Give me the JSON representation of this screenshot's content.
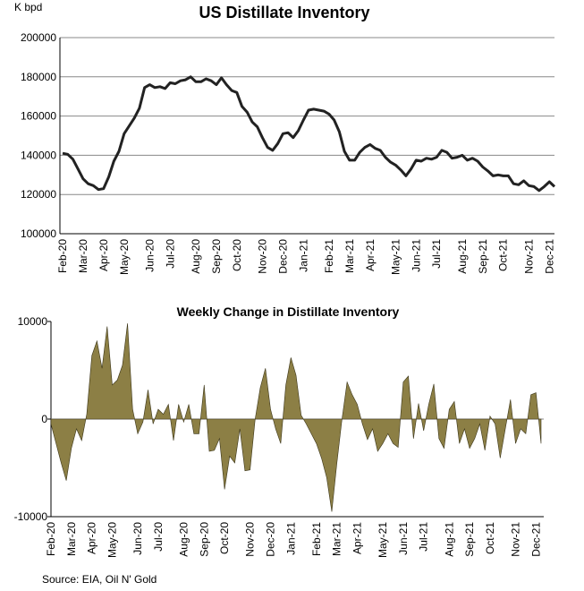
{
  "chart_data": [
    {
      "type": "line",
      "title": "US Distillate Inventory",
      "ylabel": "K bpd",
      "color": "#222222",
      "grid": true,
      "ylim": [
        100000,
        200000
      ],
      "yticks": [
        100000,
        120000,
        140000,
        160000,
        180000,
        200000
      ],
      "categories": [
        "Feb-20",
        null,
        null,
        null,
        "Mar-20",
        null,
        null,
        null,
        "Apr-20",
        null,
        null,
        null,
        "May-20",
        null,
        null,
        null,
        null,
        "Jun-20",
        null,
        null,
        null,
        "Jul-20",
        null,
        null,
        null,
        null,
        "Aug-20",
        null,
        null,
        null,
        "Sep-20",
        null,
        null,
        null,
        "Oct-20",
        null,
        null,
        null,
        null,
        "Nov-20",
        null,
        null,
        null,
        "Dec-20",
        null,
        null,
        null,
        "Jan-21",
        null,
        null,
        null,
        null,
        "Feb-21",
        null,
        null,
        null,
        "Mar-21",
        null,
        null,
        null,
        "Apr-21",
        null,
        null,
        null,
        null,
        "May-21",
        null,
        null,
        null,
        "Jun-21",
        null,
        null,
        null,
        "Jul-21",
        null,
        null,
        null,
        null,
        "Aug-21",
        null,
        null,
        null,
        "Sep-21",
        null,
        null,
        null,
        "Oct-21",
        null,
        null,
        null,
        null,
        "Nov-21",
        null,
        null,
        null,
        "Dec-21",
        null
      ],
      "values": [
        141000,
        140500,
        138000,
        133000,
        128000,
        125500,
        124500,
        122500,
        123000,
        129000,
        137000,
        142000,
        151000,
        155000,
        159000,
        164000,
        174500,
        176000,
        174500,
        175000,
        174000,
        177000,
        176500,
        178000,
        178500,
        180000,
        177500,
        177500,
        179000,
        178000,
        176000,
        179500,
        176000,
        173000,
        172000,
        165000,
        162000,
        157000,
        154500,
        149000,
        144000,
        142500,
        146000,
        151000,
        151500,
        149000,
        152500,
        158000,
        163000,
        163500,
        163000,
        162500,
        161000,
        158000,
        152000,
        142000,
        137500,
        137500,
        141500,
        144000,
        145500,
        143500,
        142500,
        139000,
        136500,
        135000,
        132500,
        129500,
        133000,
        137500,
        137000,
        138500,
        138000,
        139000,
        142500,
        141500,
        138500,
        139000,
        140000,
        137500,
        138500,
        137000,
        134000,
        132000,
        129500,
        130000,
        129500,
        129500,
        125500,
        125000,
        127000,
        124500,
        124000,
        122000,
        124000,
        126500,
        124000
      ]
    },
    {
      "type": "area",
      "title": "Weekly Change in Distillate Inventory",
      "color": "#8c7f45",
      "grid": false,
      "ylim": [
        -10000,
        10000
      ],
      "yticks": [
        -10000,
        0,
        10000
      ],
      "categories": [
        "Feb-20",
        null,
        null,
        null,
        "Mar-20",
        null,
        null,
        null,
        "Apr-20",
        null,
        null,
        null,
        "May-20",
        null,
        null,
        null,
        null,
        "Jun-20",
        null,
        null,
        null,
        "Jul-20",
        null,
        null,
        null,
        null,
        "Aug-20",
        null,
        null,
        null,
        "Sep-20",
        null,
        null,
        null,
        "Oct-20",
        null,
        null,
        null,
        null,
        "Nov-20",
        null,
        null,
        null,
        "Dec-20",
        null,
        null,
        null,
        "Jan-21",
        null,
        null,
        null,
        null,
        "Feb-21",
        null,
        null,
        null,
        "Mar-21",
        null,
        null,
        null,
        "Apr-21",
        null,
        null,
        null,
        null,
        "May-21",
        null,
        null,
        null,
        "Jun-21",
        null,
        null,
        null,
        "Jul-21",
        null,
        null,
        null,
        null,
        "Aug-21",
        null,
        null,
        null,
        "Sep-21",
        null,
        null,
        null,
        "Oct-21",
        null,
        null,
        null,
        null,
        "Nov-21",
        null,
        null,
        null,
        "Dec-21",
        null
      ],
      "values": [
        -500,
        -2500,
        -4500,
        -6300,
        -3000,
        -1000,
        -2200,
        500,
        6500,
        8000,
        5200,
        9500,
        3500,
        4000,
        5500,
        9800,
        1000,
        -1500,
        -300,
        3000,
        -500,
        1000,
        500,
        1500,
        -2200,
        1500,
        -300,
        1500,
        -1500,
        -1500,
        3500,
        -3300,
        -3200,
        -2000,
        -7200,
        -3800,
        -4500,
        -1000,
        -5300,
        -5200,
        0,
        3200,
        5200,
        1000,
        -1000,
        -2500,
        3500,
        6300,
        4500,
        400,
        -500,
        -1500,
        -2500,
        -4000,
        -6000,
        -9500,
        -4500,
        0,
        3800,
        2500,
        1500,
        -500,
        -2100,
        -1000,
        -3300,
        -2500,
        -1500,
        -2500,
        -2900,
        3800,
        4400,
        -2000,
        1600,
        -1200,
        1500,
        3600,
        -2000,
        -3000,
        1000,
        1800,
        -2500,
        -1000,
        -3000,
        -2000,
        -500,
        -3200,
        300,
        -500,
        -4000,
        -1000,
        2000,
        -2500,
        -1000,
        -1500,
        2500,
        2700,
        -2500
      ]
    }
  ],
  "source": "Source: EIA, Oil N' Gold"
}
